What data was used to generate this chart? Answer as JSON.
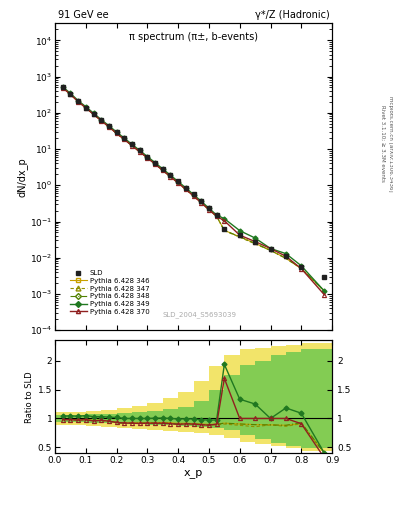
{
  "title_left": "91 GeV ee",
  "title_right": "γ*/Z (Hadronic)",
  "main_title": "π spectrum (π±, b-events)",
  "xlabel": "x_p",
  "ylabel_main": "dN/dx_p",
  "ylabel_ratio": "Ratio to SLD",
  "watermark": "SLD_2004_S5693039",
  "right_label1": "Rivet 3.1.10; ≥ 3.3M events",
  "right_label2": "mcplots.cern.ch [arXiv:1306.3436]",
  "xlim": [
    0.0,
    0.9
  ],
  "ylim_main_lo": 0.0001,
  "ylim_main_hi": 30000,
  "ylim_ratio_lo": 0.4,
  "ylim_ratio_hi": 2.35,
  "sld_x": [
    0.025,
    0.05,
    0.075,
    0.1,
    0.125,
    0.15,
    0.175,
    0.2,
    0.225,
    0.25,
    0.275,
    0.3,
    0.325,
    0.35,
    0.375,
    0.4,
    0.425,
    0.45,
    0.475,
    0.5,
    0.525,
    0.55,
    0.6,
    0.65,
    0.7,
    0.75,
    0.8,
    0.875
  ],
  "sld_y": [
    500,
    330,
    210,
    140,
    95,
    63,
    43,
    29,
    20,
    13.5,
    9.2,
    6.2,
    4.2,
    2.8,
    1.9,
    1.28,
    0.85,
    0.56,
    0.37,
    0.24,
    0.155,
    0.062,
    0.042,
    0.028,
    0.018,
    0.011,
    0.0055,
    0.003
  ],
  "p346_y": [
    490,
    325,
    205,
    138,
    92,
    61,
    41,
    27,
    18.5,
    12.5,
    8.5,
    5.75,
    3.9,
    2.6,
    1.76,
    1.17,
    0.78,
    0.51,
    0.335,
    0.215,
    0.14,
    0.057,
    0.038,
    0.025,
    0.016,
    0.0097,
    0.005,
    0.0012
  ],
  "p347_y": [
    490,
    323,
    204,
    137,
    91,
    61,
    41,
    27,
    18.4,
    12.4,
    8.4,
    5.7,
    3.85,
    2.57,
    1.73,
    1.15,
    0.77,
    0.505,
    0.33,
    0.212,
    0.138,
    0.056,
    0.037,
    0.024,
    0.016,
    0.0095,
    0.005,
    0.0012
  ],
  "p348_y": [
    490,
    324,
    205,
    137,
    91,
    61,
    41,
    27,
    18.4,
    12.4,
    8.45,
    5.72,
    3.87,
    2.58,
    1.74,
    1.16,
    0.775,
    0.508,
    0.332,
    0.213,
    0.139,
    0.057,
    0.038,
    0.025,
    0.016,
    0.0097,
    0.0051,
    0.0012
  ],
  "p349_y": [
    520,
    345,
    218,
    147,
    98,
    65,
    44,
    29.5,
    20,
    13.5,
    9.2,
    6.2,
    4.22,
    2.82,
    1.9,
    1.27,
    0.845,
    0.555,
    0.362,
    0.233,
    0.151,
    0.12,
    0.056,
    0.035,
    0.018,
    0.013,
    0.006,
    0.0012
  ],
  "p370_y": [
    490,
    323,
    204,
    137,
    91,
    61,
    41,
    27,
    18.4,
    12.4,
    8.4,
    5.7,
    3.85,
    2.57,
    1.73,
    1.15,
    0.77,
    0.505,
    0.33,
    0.212,
    0.14,
    0.105,
    0.042,
    0.028,
    0.018,
    0.011,
    0.005,
    0.00095
  ],
  "color_346": "#c8a000",
  "color_347": "#909000",
  "color_348": "#508000",
  "color_349": "#207820",
  "color_370": "#902020",
  "color_sld": "#202020",
  "yellow_edges": [
    0.0,
    0.05,
    0.1,
    0.15,
    0.2,
    0.25,
    0.3,
    0.35,
    0.4,
    0.45,
    0.5,
    0.55,
    0.6,
    0.65,
    0.7,
    0.75,
    0.8,
    0.85,
    0.9
  ],
  "yellow_lo": [
    0.88,
    0.88,
    0.87,
    0.86,
    0.84,
    0.82,
    0.8,
    0.78,
    0.77,
    0.75,
    0.72,
    0.67,
    0.6,
    0.56,
    0.52,
    0.48,
    0.44,
    0.44,
    0.44
  ],
  "yellow_hi": [
    1.12,
    1.12,
    1.13,
    1.14,
    1.18,
    1.22,
    1.27,
    1.35,
    1.45,
    1.65,
    1.9,
    2.1,
    2.2,
    2.22,
    2.25,
    2.28,
    2.3,
    2.3,
    2.3
  ],
  "green_edges": [
    0.0,
    0.05,
    0.1,
    0.15,
    0.2,
    0.25,
    0.3,
    0.35,
    0.4,
    0.45,
    0.5,
    0.55,
    0.6,
    0.65,
    0.7,
    0.75,
    0.8,
    0.85,
    0.9
  ],
  "green_lo": [
    0.94,
    0.94,
    0.93,
    0.92,
    0.91,
    0.9,
    0.89,
    0.88,
    0.87,
    0.86,
    0.84,
    0.8,
    0.72,
    0.65,
    0.58,
    0.52,
    0.48,
    0.48,
    0.48
  ],
  "green_hi": [
    1.06,
    1.06,
    1.07,
    1.08,
    1.09,
    1.11,
    1.13,
    1.16,
    1.2,
    1.3,
    1.5,
    1.75,
    1.92,
    2.0,
    2.1,
    2.15,
    2.2,
    2.2,
    2.2
  ]
}
